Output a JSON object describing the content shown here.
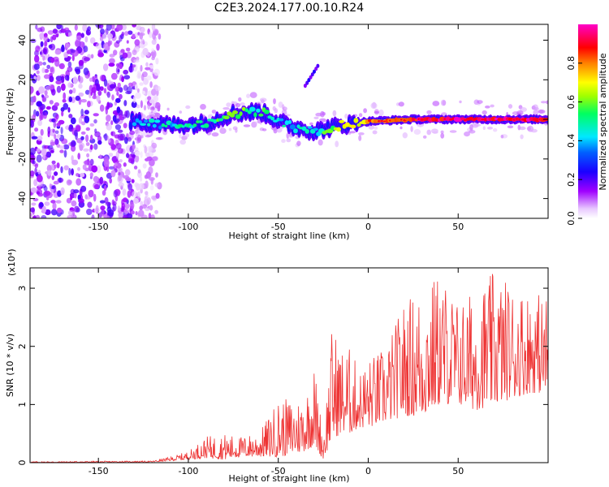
{
  "title": "C2E3.2024.177.00.10.R24",
  "chart_data": [
    {
      "type": "heatmap",
      "xlabel": "Height of straight line (km)",
      "ylabel": "Frequency (Hz)",
      "xlim": [
        -188,
        100
      ],
      "ylim": [
        -50,
        48
      ],
      "x_ticks": [
        -150,
        -100,
        -50,
        0,
        50
      ],
      "y_ticks": [
        -40,
        -20,
        0,
        20,
        40
      ],
      "colorbar": {
        "label": "Normalized spectral amplitude",
        "range": [
          0,
          1
        ],
        "ticks": [
          0.0,
          0.2,
          0.4,
          0.6,
          0.8
        ],
        "tick_labels": [
          "0.0",
          "0.2",
          "0.4",
          "0.6",
          "0.8"
        ],
        "colormap": "rainbow (white-violet-blue-cyan-green-yellow-red-magenta)"
      },
      "features": {
        "noise_region_x": [
          -188,
          -122
        ],
        "signal_band": [
          {
            "x": -130,
            "freq": -1,
            "amp": 0.45
          },
          {
            "x": -110,
            "freq": -3,
            "amp": 0.45
          },
          {
            "x": -90,
            "freq": -2,
            "amp": 0.5
          },
          {
            "x": -75,
            "freq": 3,
            "amp": 0.55
          },
          {
            "x": -60,
            "freq": 4,
            "amp": 0.5
          },
          {
            "x": -45,
            "freq": -3,
            "amp": 0.45
          },
          {
            "x": -30,
            "freq": -6,
            "amp": 0.45
          },
          {
            "x": -15,
            "freq": -3,
            "amp": 0.6
          },
          {
            "x": 0,
            "freq": -1,
            "amp": 0.8
          },
          {
            "x": 25,
            "freq": 0,
            "amp": 0.9
          },
          {
            "x": 50,
            "freq": 0,
            "amp": 0.95
          },
          {
            "x": 75,
            "freq": 0,
            "amp": 0.95
          },
          {
            "x": 98,
            "freq": 0,
            "amp": 0.95
          }
        ],
        "streak": {
          "x": [
            -35,
            -28
          ],
          "freq": [
            17,
            27
          ]
        }
      }
    },
    {
      "type": "line",
      "xlabel": "Height of straight line (km)",
      "ylabel": "SNR (10 * v/v)",
      "y_multiplier": "(x10⁴)",
      "xlim": [
        -188,
        100
      ],
      "ylim": [
        0,
        3.35
      ],
      "x_ticks": [
        -150,
        -100,
        -50,
        0,
        50
      ],
      "y_ticks": [
        0,
        1,
        2,
        3
      ],
      "color": "#ee3333",
      "envelope": {
        "x": [
          -188,
          -120,
          -110,
          -100,
          -90,
          -80,
          -70,
          -60,
          -50,
          -40,
          -35,
          -30,
          -25,
          -20,
          -15,
          -10,
          -5,
          0,
          10,
          20,
          30,
          40,
          50,
          60,
          70,
          80,
          90,
          98
        ],
        "max": [
          0.02,
          0.03,
          0.1,
          0.2,
          0.45,
          0.5,
          0.45,
          0.55,
          1.1,
          1.1,
          1.2,
          1.7,
          0.5,
          2.4,
          2.0,
          2.0,
          1.6,
          1.8,
          2.0,
          2.8,
          3.05,
          3.3,
          2.8,
          3.0,
          3.3,
          3.1,
          3.0,
          2.9
        ],
        "min": [
          0.0,
          0.01,
          0.03,
          0.05,
          0.08,
          0.05,
          0.1,
          0.1,
          0.1,
          0.15,
          0.2,
          0.3,
          0.05,
          0.4,
          0.5,
          0.5,
          0.6,
          0.6,
          0.7,
          0.8,
          0.8,
          1.0,
          1.0,
          0.9,
          1.0,
          1.1,
          1.2,
          1.2
        ]
      }
    }
  ]
}
